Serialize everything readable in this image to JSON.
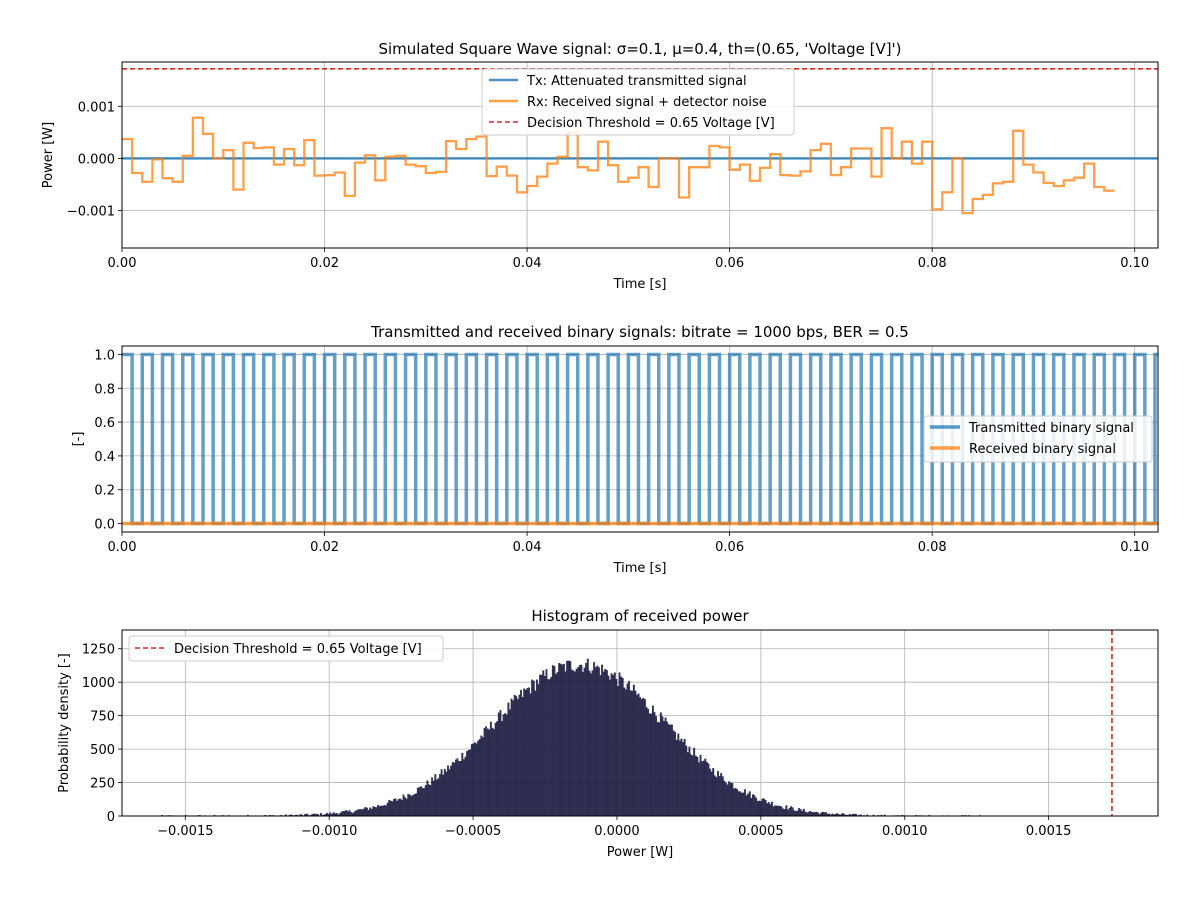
{
  "chart_data": [
    {
      "type": "line",
      "title": "Simulated Square Wave signal: σ=0.1, μ=0.4, th=(0.65, 'Voltage [V]')",
      "xlabel": "Time [s]",
      "ylabel": "Power [W]",
      "xlim": [
        0,
        0.1023
      ],
      "ylim": [
        -0.00172,
        0.00185
      ],
      "xticks": [
        "0.00",
        "0.02",
        "0.04",
        "0.06",
        "0.08",
        "0.10"
      ],
      "xtick_values": [
        0,
        0.02,
        0.04,
        0.06,
        0.08,
        0.1
      ],
      "yticks": [
        "−0.001",
        "0.000",
        "0.001"
      ],
      "ytick_values": [
        -0.001,
        0,
        0.001
      ],
      "grid": true,
      "legend_position": "upper center",
      "threshold": {
        "name": "Decision Threshold = 0.65 Voltage [V]",
        "value": 0.00172,
        "color": "#d62728"
      },
      "series": [
        {
          "name": "Tx: Attenuated transmitted signal",
          "color": "#1f77b4",
          "step": 0.001,
          "values": [
            0
          ]
        },
        {
          "name": "Rx: Received signal + detector noise",
          "color": "#ff7f0e",
          "step": 0.001,
          "values": [
            0.00037,
            -0.00028,
            -0.00045,
            -2e-05,
            -0.00038,
            -0.00045,
            5e-05,
            0.00078,
            0.00047,
            0.0,
            0.00016,
            -0.0006,
            0.0003,
            0.0002,
            0.00021,
            -0.00012,
            0.00018,
            -0.00013,
            0.00035,
            -0.00033,
            -0.00032,
            -0.00027,
            -0.00072,
            -8e-05,
            6e-05,
            -0.00042,
            3e-05,
            5e-05,
            -0.00012,
            -0.00015,
            -0.00028,
            -0.00026,
            0.00033,
            0.00018,
            0.00037,
            0.00042,
            -0.00034,
            -0.00016,
            -0.00033,
            -0.00065,
            -0.00053,
            -0.00035,
            -0.0001,
            3e-05,
            0.0005,
            -0.00017,
            -0.00023,
            0.00032,
            -0.00013,
            -0.00045,
            -0.00037,
            -0.00017,
            -0.00055,
            0.0,
            0.0,
            -0.00075,
            -0.00017,
            -0.00017,
            0.00024,
            0.00021,
            -0.00022,
            -0.00012,
            -0.00043,
            -0.00018,
            8e-05,
            -0.00032,
            -0.00033,
            -0.00025,
            0.00016,
            0.00028,
            -0.00032,
            -0.00017,
            0.00019,
            0.00019,
            -0.00035,
            0.00058,
            0.0,
            0.00032,
            -0.0001,
            0.00032,
            -0.00098,
            -0.00065,
            0.0,
            -0.00105,
            -0.00078,
            -0.0007,
            -0.00048,
            -0.00045,
            0.00053,
            -0.00012,
            -0.00027,
            -0.00047,
            -0.00053,
            -0.00042,
            -0.00037,
            -0.0001,
            -0.00055,
            -0.00062
          ]
        }
      ]
    },
    {
      "type": "line",
      "title": "Transmitted and received binary signals: bitrate = 1000 bps, BER = 0.5",
      "xlabel": "Time [s]",
      "ylabel": "[-]",
      "xlim": [
        0,
        0.1023
      ],
      "ylim": [
        -0.05,
        1.05
      ],
      "xticks": [
        "0.00",
        "0.02",
        "0.04",
        "0.06",
        "0.08",
        "0.10"
      ],
      "xtick_values": [
        0,
        0.02,
        0.04,
        0.06,
        0.08,
        0.1
      ],
      "yticks": [
        "0.0",
        "0.2",
        "0.4",
        "0.6",
        "0.8",
        "1.0"
      ],
      "ytick_values": [
        0,
        0.2,
        0.4,
        0.6,
        0.8,
        1.0
      ],
      "grid": true,
      "legend_position": "center right",
      "series": [
        {
          "name": "Transmitted binary signal",
          "color": "#1f77b4",
          "pattern": "alternating 1,0",
          "bit_period": 0.001,
          "values": [
            1,
            0
          ]
        },
        {
          "name": "Received binary signal",
          "color": "#ff7f0e",
          "bit_period": 0.001,
          "values": [
            0
          ]
        }
      ]
    },
    {
      "type": "bar",
      "title": "Histogram of received power",
      "xlabel": "Power [W]",
      "ylabel": "Probability density [-]",
      "xlim": [
        -0.00172,
        0.00188
      ],
      "ylim": [
        0,
        1390
      ],
      "xticks": [
        "−0.0015",
        "−0.0010",
        "−0.0005",
        "0.0000",
        "0.0005",
        "0.0010",
        "0.0015"
      ],
      "xtick_values": [
        -0.0015,
        -0.001,
        -0.0005,
        0,
        0.0005,
        0.001,
        0.0015
      ],
      "yticks": [
        "0",
        "250",
        "500",
        "750",
        "1000",
        "1250"
      ],
      "ytick_values": [
        0,
        250,
        500,
        750,
        1000,
        1250
      ],
      "grid": true,
      "legend_position": "upper left",
      "threshold": {
        "name": "Decision Threshold = 0.65 Voltage [V]",
        "value": 0.00172,
        "color": "#d62728"
      },
      "distribution": {
        "mean": -0.00013,
        "std": 0.0003,
        "peak": 1130,
        "max_bar": 1330,
        "range": [
          -0.0016,
          0.00127
        ]
      },
      "bar_color": "#0c0c2e"
    }
  ]
}
